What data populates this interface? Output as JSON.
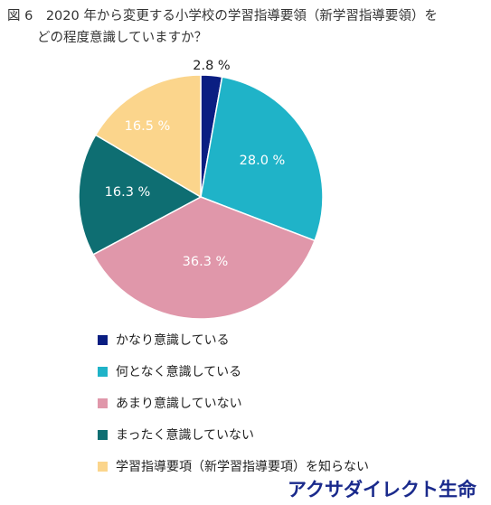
{
  "title": {
    "line1": "図 6　2020 年から変更する小学校の学習指導要領（新学習指導要領）を",
    "line2": "どの程度意識していますか？"
  },
  "chart_data": {
    "type": "pie",
    "categories": [
      "かなり意識している",
      "何となく意識している",
      "あまり意識していない",
      "まったく意識していない",
      "学習指導要項（新学習指導要項）を知らない"
    ],
    "values": [
      2.8,
      28.0,
      36.3,
      16.3,
      16.5
    ],
    "labels": [
      "2.8 %",
      "28.0 %",
      "36.3 %",
      "16.3 %",
      "16.5 %"
    ],
    "colors": [
      "#0a1e82",
      "#1fb3c8",
      "#e097aa",
      "#0e6e72",
      "#fbd58c"
    ],
    "label_colors": [
      "#222222",
      "#ffffff",
      "#ffffff",
      "#ffffff",
      "#ffffff"
    ],
    "start_angle_deg": 0,
    "direction": "clockwise",
    "legend_position": "bottom-left"
  },
  "brand": {
    "text": "アクサダイレクト生命"
  }
}
